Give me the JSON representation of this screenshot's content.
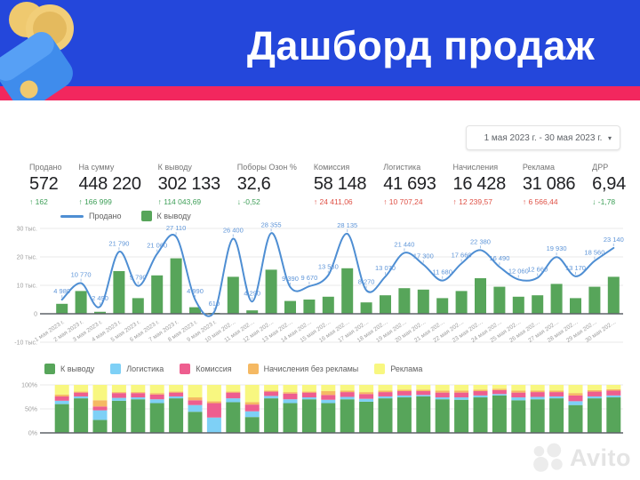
{
  "header": {
    "title": "Дашборд продаж",
    "bg_color": "#2447DB",
    "stripe_color": "#F2275E"
  },
  "date_picker": {
    "value": "1 мая 2023 г. - 30 мая 2023 г.",
    "caret": "▾"
  },
  "kpis": [
    {
      "label": "Продано",
      "value": "572",
      "arrow": "↑",
      "delta": "162",
      "trend": "positive"
    },
    {
      "label": "На сумму",
      "value": "448 220",
      "arrow": "↑",
      "delta": "166 999",
      "trend": "positive"
    },
    {
      "label": "К выводу",
      "value": "302 133",
      "arrow": "↑",
      "delta": "114 043,69",
      "trend": "positive"
    },
    {
      "label": "Поборы Озон %",
      "value": "32,6",
      "arrow": "↓",
      "delta": "-0,52",
      "trend": "positive"
    },
    {
      "label": "Комиссия",
      "value": "58 148",
      "arrow": "↑",
      "delta": "24 411,06",
      "trend": "negative"
    },
    {
      "label": "Логистика",
      "value": "41 693",
      "arrow": "↑",
      "delta": "10 707,24",
      "trend": "negative"
    },
    {
      "label": "Начисления",
      "value": "16 428",
      "arrow": "↑",
      "delta": "12 239,57",
      "trend": "negative"
    },
    {
      "label": "Реклама",
      "value": "31 086",
      "arrow": "↑",
      "delta": "6 566,44",
      "trend": "negative"
    },
    {
      "label": "ДРР",
      "value": "6,94",
      "arrow": "↓",
      "delta": "-1,78",
      "trend": "positive"
    }
  ],
  "colors": {
    "positive": "#3d9e57",
    "negative": "#df5146",
    "axis_text": "#9e9e9e",
    "grid": "#e9e9e9",
    "axis_line": "#5f6368",
    "value_label": "#5E95D8",
    "leader_tick": "#a3c2e6"
  },
  "chart_data": [
    {
      "type": "bar",
      "name": "daily-sales-combo",
      "categories": [
        "1 мая 2023 г.",
        "2 мая 2023 г.",
        "3 мая 2023 г.",
        "4 мая 2023 г.",
        "5 мая 2023 г.",
        "6 мая 2023 г.",
        "7 мая 2023 г.",
        "8 мая 2023 г.",
        "9 мая 2023 г.",
        "10 мая 202…",
        "11 мая 202…",
        "12 мая 202…",
        "13 мая 202…",
        "14 мая 202…",
        "15 мая 202…",
        "16 мая 202…",
        "17 мая 202…",
        "18 мая 202…",
        "19 мая 202…",
        "20 мая 202…",
        "21 мая 202…",
        "22 мая 202…",
        "23 мая 202…",
        "24 мая 202…",
        "25 мая 202…",
        "26 мая 202…",
        "27 мая 202…",
        "28 мая 202…",
        "29 мая 202…",
        "30 мая 202…"
      ],
      "series": [
        {
          "name": "Продано",
          "type": "line",
          "color": "#4E8ED3",
          "labels_shown": true,
          "values": [
            4980,
            10770,
            2490,
            21790,
            9790,
            21060,
            27110,
            4990,
            610,
            26400,
            4290,
            28355,
            9390,
            9670,
            13560,
            28135,
            8270,
            13070,
            21440,
            17300,
            11680,
            17660,
            22380,
            16490,
            12060,
            12660,
            19930,
            13170,
            18560,
            23140
          ]
        },
        {
          "name": "К выводу",
          "type": "bar",
          "color": "#57A55A",
          "labels_shown": false,
          "values": [
            3500,
            8000,
            700,
            15000,
            5500,
            13500,
            19500,
            2300,
            300,
            13000,
            1200,
            15500,
            4500,
            5000,
            6000,
            16000,
            4000,
            6500,
            9000,
            8500,
            5500,
            8000,
            12500,
            9500,
            6000,
            6500,
            10500,
            5500,
            9500,
            13000
          ]
        }
      ],
      "ylim": [
        -10000,
        30000
      ],
      "ytick_values": [
        30000,
        20000,
        10000,
        0,
        -10000
      ],
      "ytick_labels": [
        "30 тыс.",
        "20 тыс.",
        "10 тыс.",
        "0",
        "-10 тыс."
      ],
      "grid": true,
      "legend_position": "top-left"
    },
    {
      "type": "bar",
      "stacked": "percent",
      "name": "cost-structure-stacked",
      "xlabels_visible": false,
      "series": [
        {
          "name": "К выводу",
          "color": "#57A55A",
          "values": [
            60,
            72,
            27,
            67,
            70,
            62,
            72,
            44,
            0,
            64,
            33,
            72,
            62,
            70,
            62,
            70,
            65,
            72,
            74,
            76,
            70,
            69,
            74,
            78,
            68,
            70,
            72,
            58,
            72,
            74
          ]
        },
        {
          "name": "Логистика",
          "color": "#7ED0F6",
          "values": [
            7,
            4,
            20,
            6,
            4,
            8,
            4,
            14,
            32,
            8,
            12,
            5,
            8,
            4,
            7,
            5,
            6,
            4,
            4,
            3,
            4,
            5,
            4,
            3,
            6,
            5,
            4,
            8,
            4,
            4
          ]
        },
        {
          "name": "Комиссия",
          "color": "#EE5E8F",
          "values": [
            9,
            8,
            8,
            10,
            9,
            10,
            8,
            10,
            30,
            12,
            14,
            9,
            12,
            10,
            10,
            10,
            10,
            9,
            9,
            8,
            10,
            10,
            9,
            8,
            10,
            10,
            9,
            12,
            10,
            10
          ]
        },
        {
          "name": "Начисления без рекламы",
          "color": "#F5B963",
          "values": [
            4,
            2,
            13,
            2,
            2,
            3,
            2,
            6,
            4,
            2,
            5,
            2,
            3,
            2,
            8,
            3,
            4,
            3,
            3,
            3,
            4,
            4,
            3,
            3,
            4,
            3,
            3,
            5,
            3,
            3
          ]
        },
        {
          "name": "Реклама",
          "color": "#F8F780",
          "values": [
            20,
            14,
            32,
            15,
            15,
            17,
            14,
            26,
            34,
            14,
            36,
            12,
            15,
            14,
            13,
            12,
            15,
            12,
            10,
            10,
            12,
            12,
            10,
            8,
            12,
            12,
            12,
            17,
            11,
            9
          ]
        }
      ],
      "ylim": [
        0,
        100
      ],
      "ytick_values": [
        100,
        50,
        0
      ],
      "ytick_labels": [
        "100%",
        "50%",
        "0%"
      ],
      "grid": true,
      "legend_position": "top"
    }
  ],
  "watermark": {
    "text": "Avito"
  }
}
